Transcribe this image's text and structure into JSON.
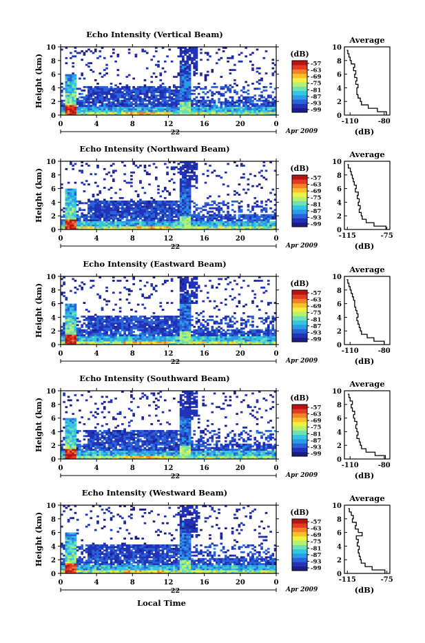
{
  "figure": {
    "x_axis_title": "Local Time",
    "date_day": "22",
    "date_suffix": "Apr 2009",
    "y_axis_title": "Height (km)",
    "colorbar_unit": "(dB)",
    "colorbar_ticks": [
      "-57",
      "-63",
      "-69",
      "-75",
      "-81",
      "-87",
      "-93",
      "-99"
    ],
    "colormap": [
      "#1b1e86",
      "#2233b8",
      "#2a62d8",
      "#2b9be6",
      "#33c6e0",
      "#6fe0b0",
      "#b6f070",
      "#f0f040",
      "#fbbf2a",
      "#f5802a",
      "#e43a24",
      "#b81414"
    ],
    "profile_title": "Average",
    "profile_unit": "(dB)"
  },
  "chart_data": [
    {
      "type": "heatmap",
      "title": "Echo Intensity (Vertical Beam)",
      "ylabel": "Height (km)",
      "xlim": [
        0,
        24
      ],
      "ylim": [
        0,
        10
      ],
      "x_ticks": [
        "0",
        "4",
        "8",
        "12",
        "16",
        "20",
        "0"
      ],
      "y_ticks": [
        "0",
        "2",
        "4",
        "6",
        "8",
        "10"
      ],
      "zlim": [
        -99,
        -57
      ],
      "profile": {
        "title": "Average",
        "xlabel": "(dB)",
        "x_ticks": [
          "-110",
          "-80"
        ],
        "xlim": [
          -115,
          -75
        ],
        "heights": [
          0,
          0.5,
          1,
          1.5,
          2,
          2.5,
          3,
          3.5,
          4,
          4.5,
          5,
          5.5,
          6,
          6.5,
          7,
          7.5,
          8,
          8.5,
          9,
          9.5
        ],
        "values": [
          -78,
          -86,
          -94,
          -100,
          -101,
          -103,
          -104,
          -104,
          -103,
          -105,
          -104,
          -106,
          -105,
          -107,
          -106,
          -109,
          -110,
          -111,
          -112,
          -113
        ]
      }
    },
    {
      "type": "heatmap",
      "title": "Echo Intensity (Northward Beam)",
      "ylabel": "Height (km)",
      "xlim": [
        0,
        24
      ],
      "ylim": [
        0,
        10
      ],
      "x_ticks": [
        "0",
        "4",
        "8",
        "12",
        "16",
        "20",
        "0"
      ],
      "y_ticks": [
        "0",
        "2",
        "4",
        "6",
        "8",
        "10"
      ],
      "zlim": [
        -99,
        -57
      ],
      "profile": {
        "title": "Average",
        "xlabel": "(dB)",
        "x_ticks": [
          "-115",
          "-75"
        ],
        "xlim": [
          -118,
          -72
        ],
        "heights": [
          0,
          0.5,
          1,
          1.5,
          2,
          2.5,
          3,
          3.5,
          4,
          4.5,
          5,
          5.5,
          6,
          6.5,
          7,
          7.5,
          8,
          8.5,
          9,
          9.5
        ],
        "values": [
          -76,
          -88,
          -96,
          -100,
          -101,
          -103,
          -102,
          -104,
          -103,
          -105,
          -104,
          -107,
          -106,
          -108,
          -109,
          -110,
          -111,
          -112,
          -114,
          -115
        ]
      }
    },
    {
      "type": "heatmap",
      "title": "Echo Intensity (Eastward Beam)",
      "ylabel": "Height (km)",
      "xlim": [
        0,
        24
      ],
      "ylim": [
        0,
        10
      ],
      "x_ticks": [
        "0",
        "4",
        "8",
        "12",
        "16",
        "20",
        "0"
      ],
      "y_ticks": [
        "0",
        "2",
        "4",
        "6",
        "8",
        "10"
      ],
      "zlim": [
        -99,
        -57
      ],
      "profile": {
        "title": "Average",
        "xlabel": "(dB)",
        "x_ticks": [
          "-110",
          "-80"
        ],
        "xlim": [
          -115,
          -75
        ],
        "heights": [
          0,
          0.5,
          1,
          1.5,
          2,
          2.5,
          3,
          3.5,
          4,
          4.5,
          5,
          5.5,
          6,
          6.5,
          7,
          7.5,
          8,
          8.5,
          9,
          9.5
        ],
        "values": [
          -80,
          -89,
          -95,
          -100,
          -101,
          -102,
          -103,
          -104,
          -103,
          -104,
          -105,
          -106,
          -106,
          -107,
          -108,
          -109,
          -110,
          -111,
          -112,
          -113
        ]
      }
    },
    {
      "type": "heatmap",
      "title": "Echo Intensity (Southward Beam)",
      "ylabel": "Height (km)",
      "xlim": [
        0,
        24
      ],
      "ylim": [
        0,
        10
      ],
      "x_ticks": [
        "0",
        "4",
        "8",
        "12",
        "16",
        "20",
        "0"
      ],
      "y_ticks": [
        "0",
        "2",
        "4",
        "6",
        "8",
        "10"
      ],
      "zlim": [
        -99,
        -57
      ],
      "profile": {
        "title": "Average",
        "xlabel": "(dB)",
        "x_ticks": [
          "-110",
          "-80"
        ],
        "xlim": [
          -115,
          -75
        ],
        "heights": [
          0,
          0.5,
          1,
          1.5,
          2,
          2.5,
          3,
          3.5,
          4,
          4.5,
          5,
          5.5,
          6,
          6.5,
          7,
          7.5,
          8,
          8.5,
          9,
          9.5
        ],
        "values": [
          -79,
          -88,
          -96,
          -100,
          -101,
          -102,
          -104,
          -103,
          -104,
          -105,
          -104,
          -106,
          -107,
          -106,
          -108,
          -109,
          -108,
          -110,
          -111,
          -112
        ]
      }
    },
    {
      "type": "heatmap",
      "title": "Echo Intensity (Westward Beam)",
      "ylabel": "Height (km)",
      "xlim": [
        0,
        24
      ],
      "ylim": [
        0,
        10
      ],
      "x_ticks": [
        "0",
        "4",
        "8",
        "12",
        "16",
        "20",
        "0"
      ],
      "y_ticks": [
        "0",
        "2",
        "4",
        "6",
        "8",
        "10"
      ],
      "zlim": [
        -99,
        -57
      ],
      "profile": {
        "title": "Average",
        "xlabel": "(dB)",
        "x_ticks": [
          "-115",
          "-75"
        ],
        "xlim": [
          -118,
          -72
        ],
        "heights": [
          0,
          0.5,
          1,
          1.5,
          2,
          2.5,
          3,
          3.5,
          4,
          4.5,
          5,
          5.5,
          6,
          6.5,
          7,
          7.5,
          8,
          8.5,
          9,
          9.5
        ],
        "values": [
          -77,
          -90,
          -97,
          -101,
          -102,
          -103,
          -104,
          -103,
          -105,
          -104,
          -106,
          -100,
          -104,
          -107,
          -106,
          -110,
          -109,
          -111,
          -113,
          -114
        ]
      }
    }
  ]
}
